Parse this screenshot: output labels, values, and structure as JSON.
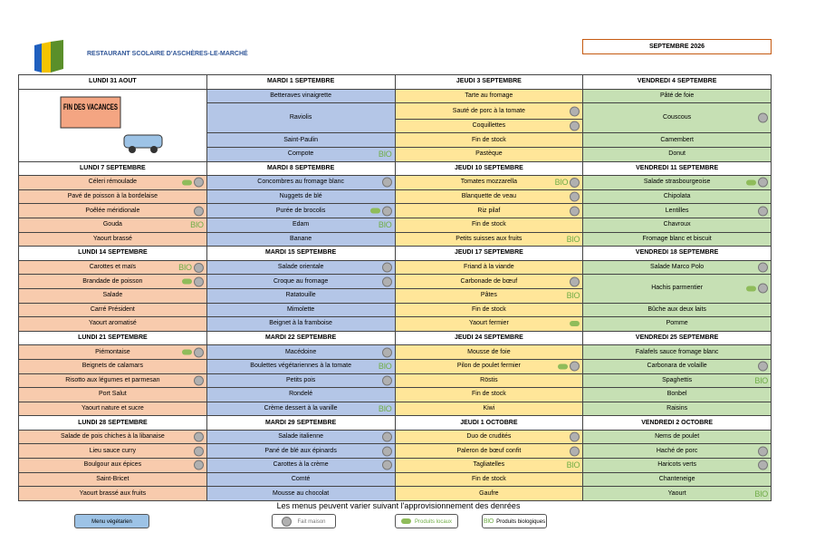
{
  "header": {
    "title": "RESTAURANT SCOLAIRE D'ASCHÈRES-LE-MARCHÉ",
    "month": "SEPTEMBRE 2026"
  },
  "weeks": [
    {
      "days": [
        {
          "header": "LUNDI 31 AOUT",
          "image_text": "FIN DES VACANCES"
        },
        {
          "header": "MARDI 1 SEPTEMBRE",
          "items": [
            {
              "label": "Betteraves vinaigrette"
            },
            {
              "label": "Raviolis",
              "span": 2
            },
            {
              "label": "Saint-Paulin"
            },
            {
              "label": "Compote",
              "bio": true
            }
          ]
        },
        {
          "header": "JEUDI 3 SEPTEMBRE",
          "items": [
            {
              "label": "Tarte au fromage"
            },
            {
              "label": "Sauté de porc à la tomate",
              "maison": true
            },
            {
              "label": "Coquillettes",
              "maison": true
            },
            {
              "label": "Fin de stock"
            },
            {
              "label": "Pastèque"
            }
          ]
        },
        {
          "header": "VENDREDI 4 SEPTEMBRE",
          "items": [
            {
              "label": "Pâté de foie"
            },
            {
              "label": "Couscous",
              "span": 2,
              "maison": true
            },
            {
              "label": "Camembert"
            },
            {
              "label": "Donut"
            }
          ]
        }
      ]
    },
    {
      "days": [
        {
          "header": "LUNDI 7 SEPTEMBRE",
          "items": [
            {
              "label": "Céleri rémoulade",
              "local": true,
              "maison": true
            },
            {
              "label": "Pavé de poisson à la bordelaise"
            },
            {
              "label": "Poêlée méridionale",
              "maison": true
            },
            {
              "label": "Gouda",
              "bio": true
            },
            {
              "label": "Yaourt brassé"
            }
          ]
        },
        {
          "header": "MARDI 8 SEPTEMBRE",
          "items": [
            {
              "label": "Concombres au fromage blanc",
              "maison": true
            },
            {
              "label": "Nuggets de blé"
            },
            {
              "label": "Purée de brocolis",
              "local": true,
              "maison": true
            },
            {
              "label": "Edam",
              "bio": true
            },
            {
              "label": "Banane"
            }
          ]
        },
        {
          "header": "JEUDI 10 SEPTEMBRE",
          "items": [
            {
              "label": "Tomates mozzarella",
              "bio": true,
              "maison": true
            },
            {
              "label": "Blanquette de veau",
              "maison": true
            },
            {
              "label": "Riz pilaf",
              "maison": true
            },
            {
              "label": "Fin de stock"
            },
            {
              "label": "Petits suisses aux fruits",
              "bio": true
            }
          ]
        },
        {
          "header": "VENDREDI 11 SEPTEMBRE",
          "items": [
            {
              "label": "Salade strasbourgeoise",
              "local": true,
              "maison": true
            },
            {
              "label": "Chipolata"
            },
            {
              "label": "Lentilles",
              "maison": true
            },
            {
              "label": "Chavroux"
            },
            {
              "label": "Fromage blanc et biscuit"
            }
          ]
        }
      ]
    },
    {
      "days": [
        {
          "header": "LUNDI 14 SEPTEMBRE",
          "items": [
            {
              "label": "Carottes et maïs",
              "bio": true,
              "maison": true
            },
            {
              "label": "Brandade de poisson",
              "local": true,
              "maison": true
            },
            {
              "label": "Salade"
            },
            {
              "label": "Carré Président"
            },
            {
              "label": "Yaourt aromatisé"
            }
          ]
        },
        {
          "header": "MARDI 15 SEPTEMBRE",
          "items": [
            {
              "label": "Salade orientale",
              "maison": true
            },
            {
              "label": "Croque au fromage",
              "maison": true
            },
            {
              "label": "Ratatouille"
            },
            {
              "label": "Mimolette"
            },
            {
              "label": "Beignet à la framboise"
            }
          ]
        },
        {
          "header": "JEUDI 17 SEPTEMBRE",
          "items": [
            {
              "label": "Friand à la viande"
            },
            {
              "label": "Carbonade de bœuf",
              "maison": true
            },
            {
              "label": "Pâtes",
              "bio": true
            },
            {
              "label": "Fin de stock"
            },
            {
              "label": "Yaourt fermier",
              "local": true
            }
          ]
        },
        {
          "header": "VENDREDI 18 SEPTEMBRE",
          "items": [
            {
              "label": "Salade Marco Polo",
              "maison": true
            },
            {
              "label": "Hachis parmentier",
              "span": 2,
              "local": true,
              "maison": true
            },
            {
              "label": "Bûche aux deux laits"
            },
            {
              "label": "Pomme"
            }
          ]
        }
      ]
    },
    {
      "days": [
        {
          "header": "LUNDI 21 SEPTEMBRE",
          "items": [
            {
              "label": "Piémontaise",
              "local": true,
              "maison": true
            },
            {
              "label": "Beignets de calamars"
            },
            {
              "label": "Risotto aux légumes et parmesan",
              "maison": true
            },
            {
              "label": "Port Salut"
            },
            {
              "label": "Yaourt nature et sucre"
            }
          ]
        },
        {
          "header": "MARDI 22 SEPTEMBRE",
          "items": [
            {
              "label": "Macédoine",
              "maison": true
            },
            {
              "label": "Boulettes végétariennes à la tomate",
              "bio": true
            },
            {
              "label": "Petits pois",
              "maison": true
            },
            {
              "label": "Rondelé"
            },
            {
              "label": "Crème dessert à la vanille",
              "bio": true
            }
          ]
        },
        {
          "header": "JEUDI 24 SEPTEMBRE",
          "items": [
            {
              "label": "Mousse de foie"
            },
            {
              "label": "Pilon de poulet fermier",
              "local": true,
              "maison": true
            },
            {
              "label": "Röstis"
            },
            {
              "label": "Fin de stock"
            },
            {
              "label": "Kiwi"
            }
          ]
        },
        {
          "header": "VENDREDI 25 SEPTEMBRE",
          "items": [
            {
              "label": "Falafels sauce fromage blanc"
            },
            {
              "label": "Carbonara de volaille",
              "maison": true
            },
            {
              "label": "Spaghettis",
              "bio": true
            },
            {
              "label": "Bonbel"
            },
            {
              "label": "Raisins"
            }
          ]
        }
      ]
    },
    {
      "days": [
        {
          "header": "LUNDI 28 SEPTEMBRE",
          "items": [
            {
              "label": "Salade de pois chiches à la libanaise",
              "maison": true
            },
            {
              "label": "Lieu sauce curry",
              "maison": true
            },
            {
              "label": "Boulgour aux épices",
              "maison": true
            },
            {
              "label": "Saint-Bricet"
            },
            {
              "label": "Yaourt brassé aux fruits"
            }
          ]
        },
        {
          "header": "MARDI 29 SEPTEMBRE",
          "items": [
            {
              "label": "Salade italienne",
              "maison": true
            },
            {
              "label": "Pané de blé aux épinards",
              "maison": true
            },
            {
              "label": "Carottes à la crème",
              "maison": true
            },
            {
              "label": "Comté"
            },
            {
              "label": "Mousse au chocolat"
            }
          ]
        },
        {
          "header": "JEUDI 1 OCTOBRE",
          "items": [
            {
              "label": "Duo de crudités",
              "maison": true
            },
            {
              "label": "Paleron de bœuf confit",
              "maison": true
            },
            {
              "label": "Tagliatelles",
              "bio": true
            },
            {
              "label": "Fin de stock"
            },
            {
              "label": "Gaufre"
            }
          ]
        },
        {
          "header": "VENDREDI 2 OCTOBRE",
          "items": [
            {
              "label": "Nems de poulet"
            },
            {
              "label": "Haché de porc",
              "maison": true
            },
            {
              "label": "Haricots verts",
              "maison": true
            },
            {
              "label": "Chanteneige"
            },
            {
              "label": "Yaourt",
              "bio": true
            }
          ]
        }
      ]
    }
  ],
  "footer": {
    "note": "Les menus peuvent varier suivant l'approvisionnement des denrées"
  },
  "legend": {
    "vegetarian": "Menu végétarien",
    "homemade": "Fait maison",
    "local": "Produits locaux",
    "bio_mark": "BIO",
    "bio": "Produits biologiques"
  }
}
